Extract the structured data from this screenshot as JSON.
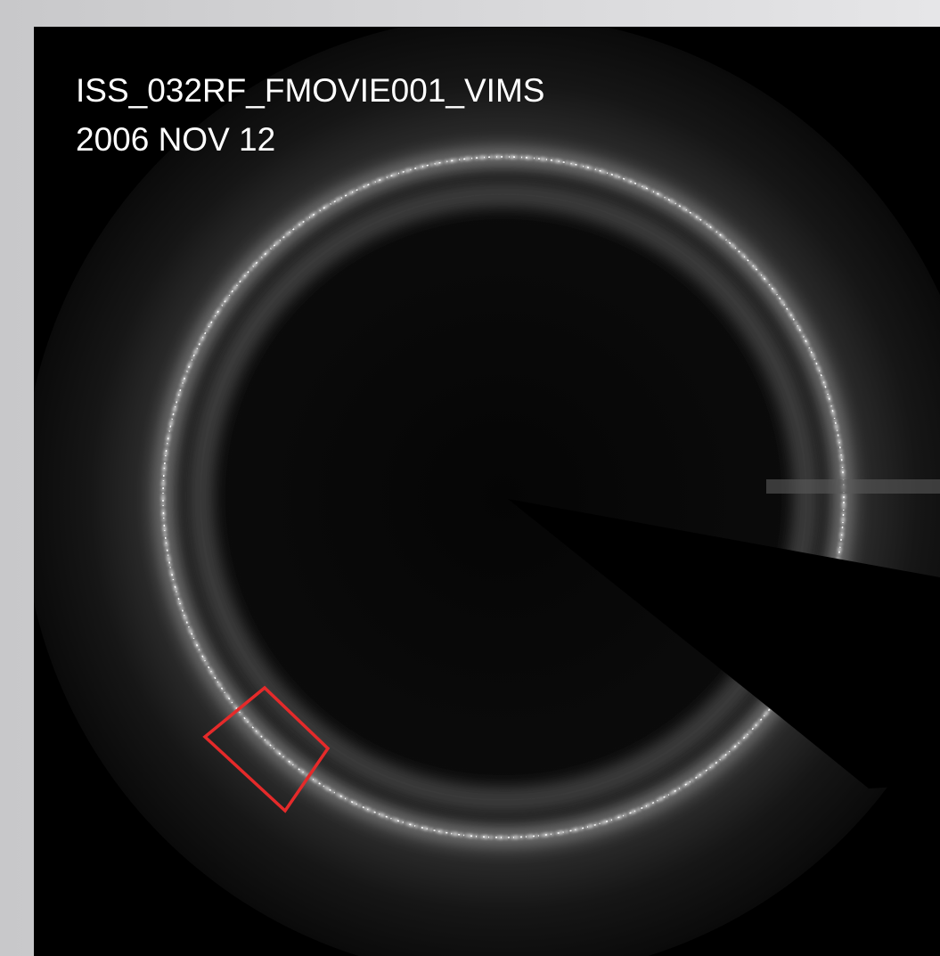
{
  "overlay": {
    "lines": [
      "ISS_032RF_FMOVIE001_VIMS",
      "2006 NOV 12"
    ]
  }
}
